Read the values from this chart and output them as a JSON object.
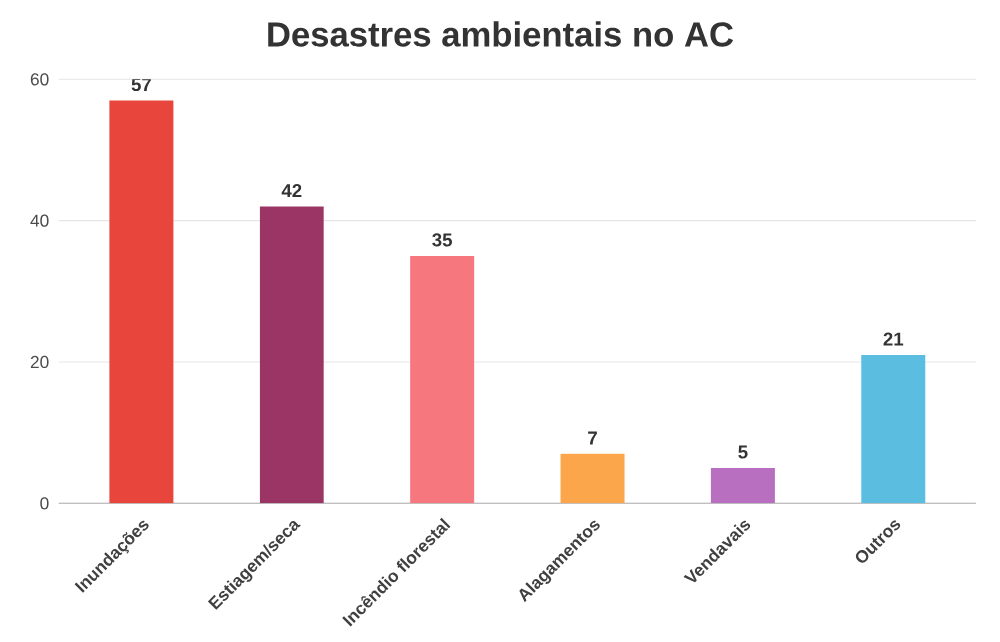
{
  "chart_data": {
    "type": "bar",
    "title": "Desastres ambientais no AC",
    "categories": [
      "Inundações",
      "Estiagem/seca",
      "Incêndio florestal",
      "Alagamentos",
      "Vendavais",
      "Outros"
    ],
    "values": [
      57,
      42,
      35,
      7,
      5,
      21
    ],
    "colors": [
      "#e8453c",
      "#9b3566",
      "#f7777f",
      "#fba64b",
      "#b96fbf",
      "#5bbde0"
    ],
    "ylim": [
      0,
      60
    ],
    "yticks": [
      0,
      20,
      40,
      60
    ],
    "grid": "y",
    "data_labels": true
  }
}
